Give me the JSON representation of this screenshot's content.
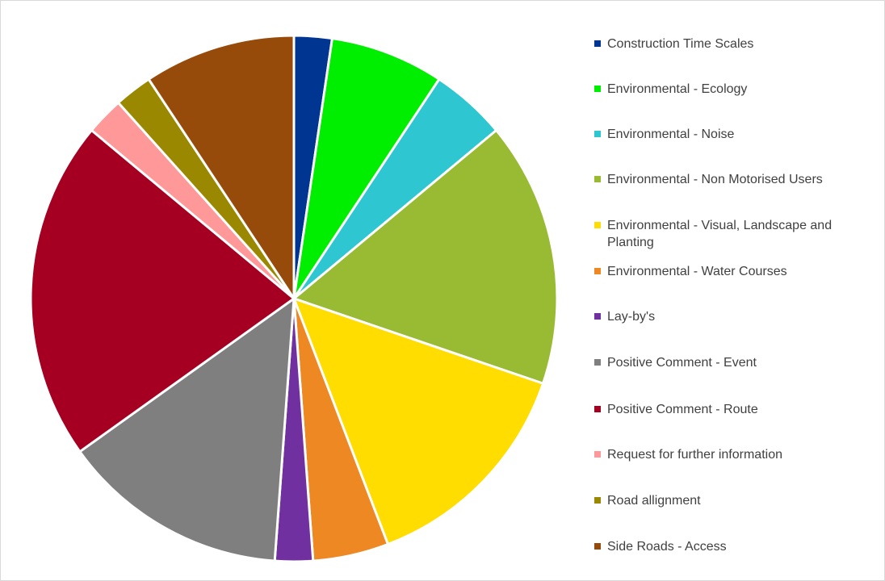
{
  "chart_data": {
    "type": "pie",
    "categories": [
      "Construction Time Scales",
      "Environmental - Ecology",
      "Environmental - Noise",
      "Environmental - Non Motorised Users",
      "Environmental - Visual, Landscape and Planting",
      "Environmental - Water Courses",
      "Lay-by's",
      "Positive Comment - Event",
      "Positive Comment - Route",
      "Request for further information",
      "Road allignment",
      "Side Roads - Access"
    ],
    "values": [
      1,
      3,
      2,
      7,
      6,
      2,
      1,
      6,
      9,
      1,
      1,
      4
    ],
    "colors": [
      "#003591",
      "#00ee00",
      "#2ec6d0",
      "#99bb33",
      "#ffdd00",
      "#ee8822",
      "#7030a0",
      "#7f7f7f",
      "#a50021",
      "#ff9999",
      "#998800",
      "#964b0a"
    ],
    "legend": "right"
  }
}
